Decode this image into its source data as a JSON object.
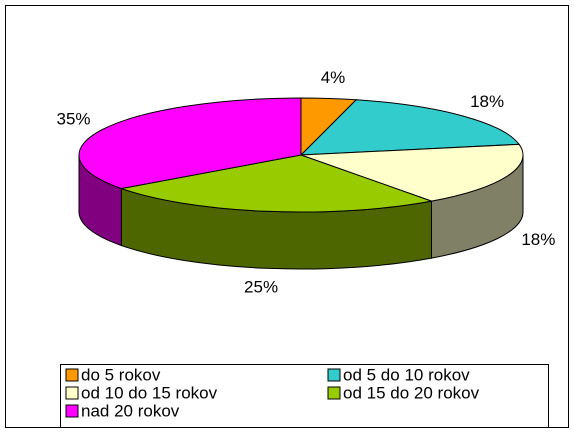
{
  "chart_data": {
    "type": "pie",
    "categories": [
      "do 5 rokov",
      "od 5 do 10 rokov",
      "od 10 do 15 rokov",
      "od 15 do 20 rokov",
      "nad 20 rokov"
    ],
    "values": [
      4,
      18,
      18,
      25,
      35
    ],
    "value_labels": [
      "4%",
      "18%",
      "18%",
      "25%",
      "35%"
    ],
    "colors": [
      "#ff9900",
      "#33cccc",
      "#ffffcc",
      "#99cc00",
      "#ff00ff"
    ],
    "legend": "bottom"
  }
}
